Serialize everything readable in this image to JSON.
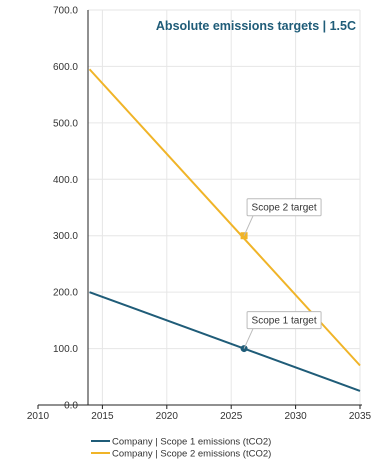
{
  "chart_data": {
    "type": "line",
    "title": "Absolute emissions targets | 1.5C",
    "xlabel": "",
    "ylabel": "",
    "xlim": [
      2010,
      2035
    ],
    "ylim": [
      0,
      700
    ],
    "x_ticks": [
      "2010",
      "2015",
      "2020",
      "2025",
      "2030",
      "2035"
    ],
    "y_ticks": [
      "0.0",
      "100.0",
      "200.0",
      "300.0",
      "400.0",
      "500.0",
      "600.0",
      "700.0"
    ],
    "grid": true,
    "legend_position": "bottom",
    "series": [
      {
        "name": "Company | Scope 1 emissions (tCO2)",
        "color": "#1f5c78",
        "x": [
          2014,
          2035
        ],
        "y": [
          200,
          25
        ],
        "marker": {
          "x": 2026,
          "y": 100,
          "shape": "circle",
          "label": "Scope 1 target"
        }
      },
      {
        "name": "Company | Scope 2 emissions (tCO2)",
        "color": "#f0b428",
        "x": [
          2014,
          2035
        ],
        "y": [
          595,
          70
        ],
        "marker": {
          "x": 2026,
          "y": 300,
          "shape": "square",
          "label": "Scope 2 target"
        }
      }
    ]
  }
}
